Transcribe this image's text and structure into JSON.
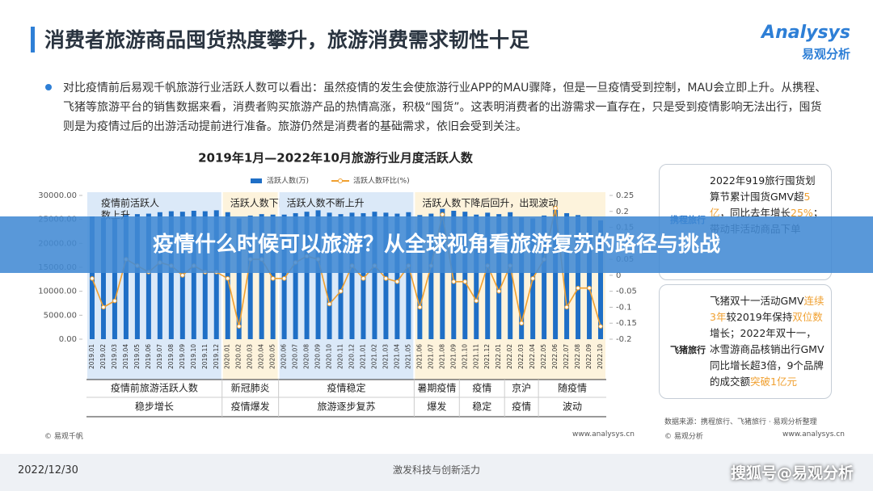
{
  "header": {
    "title": "消费者旅游商品囤货热度攀升，旅游消费需求韧性十足",
    "logo": "Analysys",
    "logo_cn": "易观分析"
  },
  "intro": "对比疫情前后易观千帆旅游行业活跃人数可以看出：虽然疫情的发生会使旅游行业APP的MAU骤降，但是一旦疫情受到控制，MAU会立即上升。从携程、飞猪等旅游平台的销售数据来看，消费者购买旅游产品的热情高涨，积极“囤货”。这表明消费者的出游需求一直存在，只是受到疫情影响无法出行，囤货则是为疫情过后的出游活动提前进行准备。旅游仍然是消费者的基础需求，依旧会受到关注。",
  "chart_data": {
    "type": "bar-line",
    "title": "2019年1月—2022年10月旅游行业月度活跃人数",
    "categories": [
      "2019.01",
      "2019.02",
      "2019.03",
      "2019.04",
      "2019.05",
      "2019.06",
      "2019.07",
      "2019.08",
      "2019.09",
      "2019.10",
      "2019.11",
      "2019.12",
      "2020.01",
      "2020.02",
      "2020.03",
      "2020.04",
      "2020.05",
      "2020.06",
      "2020.07",
      "2020.08",
      "2020.09",
      "2020.10",
      "2020.11",
      "2020.12",
      "2021.01",
      "2021.02",
      "2021.03",
      "2021.04",
      "2021.05",
      "2021.06",
      "2021.07",
      "2021.08",
      "2021.09",
      "2021.10",
      "2021.11",
      "2021.12",
      "2022.01",
      "2022.02",
      "2022.03",
      "2022.04",
      "2022.05",
      "2022.06",
      "2022.07",
      "2022.08",
      "2022.09",
      "2022.10"
    ],
    "series": [
      {
        "name": "活跃人数(万)",
        "color": "#1f6fc6",
        "values": [
          25600,
          25300,
          25100,
          25900,
          26100,
          26200,
          26500,
          26700,
          26600,
          26800,
          26700,
          26900,
          26500,
          25200,
          25800,
          26100,
          26000,
          26000,
          26300,
          26600,
          26900,
          26400,
          26100,
          26400,
          26300,
          26600,
          26400,
          26200,
          26500,
          25900,
          26200,
          27200,
          26800,
          26600,
          26000,
          26400,
          26100,
          26500,
          25400,
          25200,
          25800,
          27000,
          26300,
          25900,
          25600,
          24800
        ]
      },
      {
        "name": "活跃人数环比(%)",
        "color": "#f0a030",
        "axis": "y2",
        "values": [
          -0.01,
          -0.1,
          -0.08,
          0.05,
          0.03,
          0.01,
          0.04,
          0.03,
          0,
          0.03,
          0.01,
          0.01,
          -0.01,
          -0.16,
          0.05,
          0.05,
          -0.01,
          -0.01,
          0.04,
          0.06,
          0.05,
          -0.09,
          -0.05,
          0.03,
          -0.01,
          0.03,
          -0.01,
          -0.02,
          0.03,
          -0.1,
          0.03,
          0.19,
          -0.02,
          -0.02,
          -0.08,
          0.03,
          -0.05,
          0.03,
          -0.15,
          -0.01,
          0.05,
          0.21,
          -0.1,
          -0.04,
          -0.04,
          -0.16
        ]
      }
    ],
    "ylim": [
      0,
      30000
    ],
    "yticks": [
      {
        "value": 0,
        "label": "0.00"
      },
      {
        "value": 5000,
        "label": "5000.00"
      },
      {
        "value": 10000,
        "label": "10000.00"
      },
      {
        "value": 15000,
        "label": "15000.00"
      },
      {
        "value": 20000,
        "label": "20000.00"
      },
      {
        "value": 25000,
        "label": "25000.00"
      },
      {
        "value": 30000,
        "label": "30000.00"
      }
    ],
    "y2lim": [
      -0.2,
      0.25
    ],
    "y2ticks": [
      -0.2,
      -0.15,
      -0.1,
      -0.05,
      0,
      0.05,
      0.1,
      0.15,
      0.2,
      0.25
    ],
    "periods": [
      {
        "label": [
          "疫情前活跃人",
          "数上升"
        ],
        "color": "#dbe9f8"
      },
      {
        "label": [
          "活跃人数下降"
        ],
        "color": "#fdf3dc"
      },
      {
        "label": [
          "活跃人数不断上升"
        ],
        "color": "#dbe9f8"
      },
      {
        "label": [
          "活跃人数下降后回升，出现波动"
        ],
        "color": "#fdf3dc"
      }
    ],
    "phases": [
      {
        "top": "疫情前旅游活跃人数",
        "bottom": "稳步增长"
      },
      {
        "top": "新冠肺炎",
        "bottom": "疫情爆发"
      },
      {
        "top": "疫情稳定",
        "bottom": "旅游逐步复苏"
      },
      {
        "top": "暑期疫情",
        "bottom": "爆发"
      },
      {
        "top": "疫情",
        "bottom": "稳定"
      },
      {
        "top": "京沪",
        "bottom": "疫情"
      },
      {
        "top": "随疫情",
        "bottom": "波动"
      }
    ]
  },
  "cards": [
    {
      "brand": "携程旅行",
      "segments": [
        {
          "text": "2022年919旅行囤货划算节累计囤货GMV超"
        },
        {
          "text": "5亿",
          "color": "#f0a030"
        },
        {
          "text": "，同比去年增长"
        },
        {
          "text": "25%",
          "color": "#f0a030"
        },
        {
          "text": "；带动非活动商品下单"
        }
      ]
    },
    {
      "brand": "飞猪旅行",
      "segments": [
        {
          "text": "飞猪双十一活动GMV"
        },
        {
          "text": "连续3年",
          "color": "#f0a030"
        },
        {
          "text": "较2019年保持"
        },
        {
          "text": "双位数",
          "color": "#f0a030"
        },
        {
          "text": "增长；2022年双十一，冰雪游商品核销出行GMV同比增长超3倍，9个品牌的成交额"
        },
        {
          "text": "突破1亿元",
          "color": "#f0a030"
        }
      ]
    }
  ],
  "source": "数据来源：携程旅行、飞猪旅行 · 易观分析整理",
  "copyright_left": "© 易观千帆",
  "copyright_right": "© 易观分析",
  "site_left": "www.analysys.cn",
  "site_right": "www.analysys.cn",
  "date": "2022/12/30",
  "slogan": "激发科技与创新活力",
  "watermark": "搜狐号@易观分析",
  "banner": "疫情什么时候可以旅游？从全球视角看旅游复苏的路径与挑战"
}
